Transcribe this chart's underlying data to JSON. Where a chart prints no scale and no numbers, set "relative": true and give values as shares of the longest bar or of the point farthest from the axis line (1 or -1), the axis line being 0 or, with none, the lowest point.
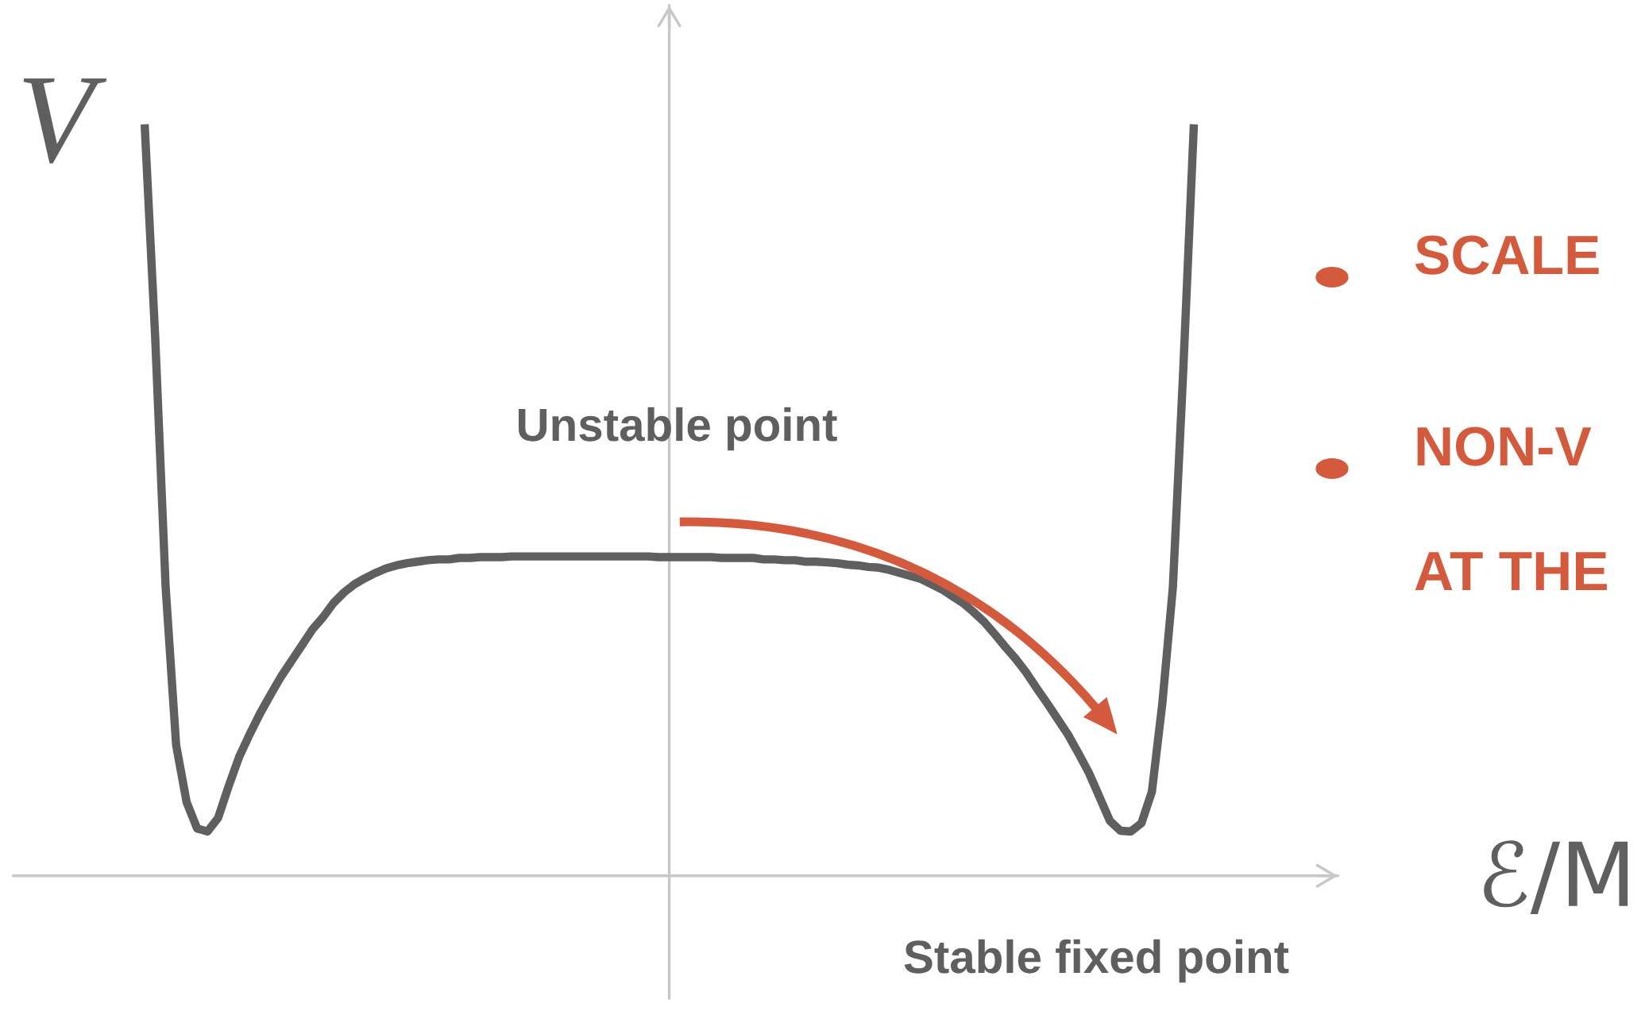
{
  "chart_data": {
    "type": "line",
    "relative": true,
    "xlabel": "ℰ/M",
    "ylabel": "V",
    "annotations": [
      "Unstable point",
      "Stable fixed point",
      "SCALE",
      "NON-V",
      "AT THE"
    ],
    "categories": [
      null,
      null,
      null,
      null,
      null,
      null,
      null,
      null,
      null,
      null,
      null,
      null,
      null,
      null,
      null,
      null,
      null,
      null,
      null,
      null,
      null,
      null,
      null,
      null,
      null,
      null,
      null,
      null,
      null,
      null,
      null,
      null,
      null,
      null,
      null,
      null,
      null,
      null,
      null,
      null,
      null,
      null,
      null,
      null,
      null,
      null,
      null,
      null,
      null,
      null,
      null,
      null,
      null,
      null,
      null,
      null,
      null,
      null,
      null,
      null,
      null,
      null,
      null,
      null,
      null,
      null,
      null,
      null,
      null,
      null,
      null,
      null,
      null,
      null,
      null,
      null,
      null,
      null,
      null,
      null,
      null,
      null,
      null,
      null,
      null,
      null,
      null,
      null,
      null,
      null,
      null,
      null,
      null,
      null,
      null,
      null,
      null,
      null,
      null,
      null,
      null
    ],
    "series": [
      {
        "color": "#5f5f5f",
        "values": [
          1.0,
          0.718,
          0.384,
          0.174,
          0.098,
          0.063,
          0.059,
          0.077,
          0.119,
          0.158,
          0.188,
          0.216,
          0.241,
          0.265,
          0.286,
          0.307,
          0.328,
          0.344,
          0.363,
          0.377,
          0.388,
          0.396,
          0.403,
          0.409,
          0.413,
          0.416,
          0.418,
          0.42,
          0.421,
          0.421,
          0.423,
          0.423,
          0.424,
          0.424,
          0.424,
          0.425,
          0.425,
          0.425,
          0.425,
          0.425,
          0.425,
          0.425,
          0.425,
          0.425,
          0.425,
          0.425,
          0.425,
          0.425,
          0.425,
          0.424,
          0.424,
          0.424,
          0.424,
          0.424,
          0.424,
          0.423,
          0.423,
          0.423,
          0.423,
          0.421,
          0.421,
          0.42,
          0.42,
          0.418,
          0.418,
          0.417,
          0.416,
          0.414,
          0.413,
          0.411,
          0.41,
          0.407,
          0.403,
          0.399,
          0.395,
          0.388,
          0.381,
          0.372,
          0.363,
          0.351,
          0.338,
          0.322,
          0.305,
          0.289,
          0.271,
          0.25,
          0.23,
          0.209,
          0.188,
          0.163,
          0.137,
          0.105,
          0.073,
          0.06,
          0.059,
          0.07,
          0.112,
          0.23,
          0.384,
          0.676,
          1.0
        ]
      }
    ]
  }
}
